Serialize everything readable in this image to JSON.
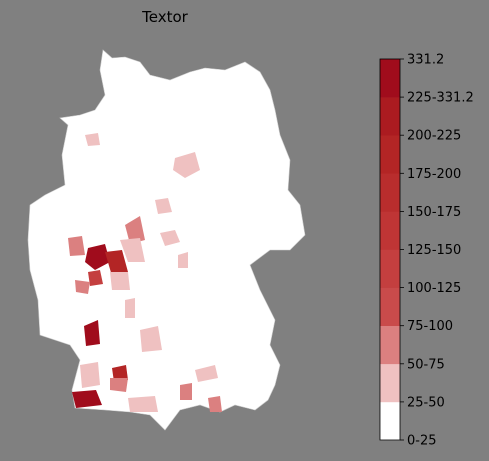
{
  "title": "Textor",
  "colorbar": {
    "labels": [
      "0-25",
      "25-50",
      "50-75",
      "75-100",
      "100-125",
      "125-150",
      "150-175",
      "175-200",
      "200-225",
      "225-331.2",
      "331.2"
    ],
    "colors": [
      "#ffffff",
      "#efc1c1",
      "#db8080",
      "#c94b4b",
      "#c43f3f",
      "#bf3535",
      "#b92d2d",
      "#b32525",
      "#ab1b20",
      "#a00c1c"
    ]
  }
}
